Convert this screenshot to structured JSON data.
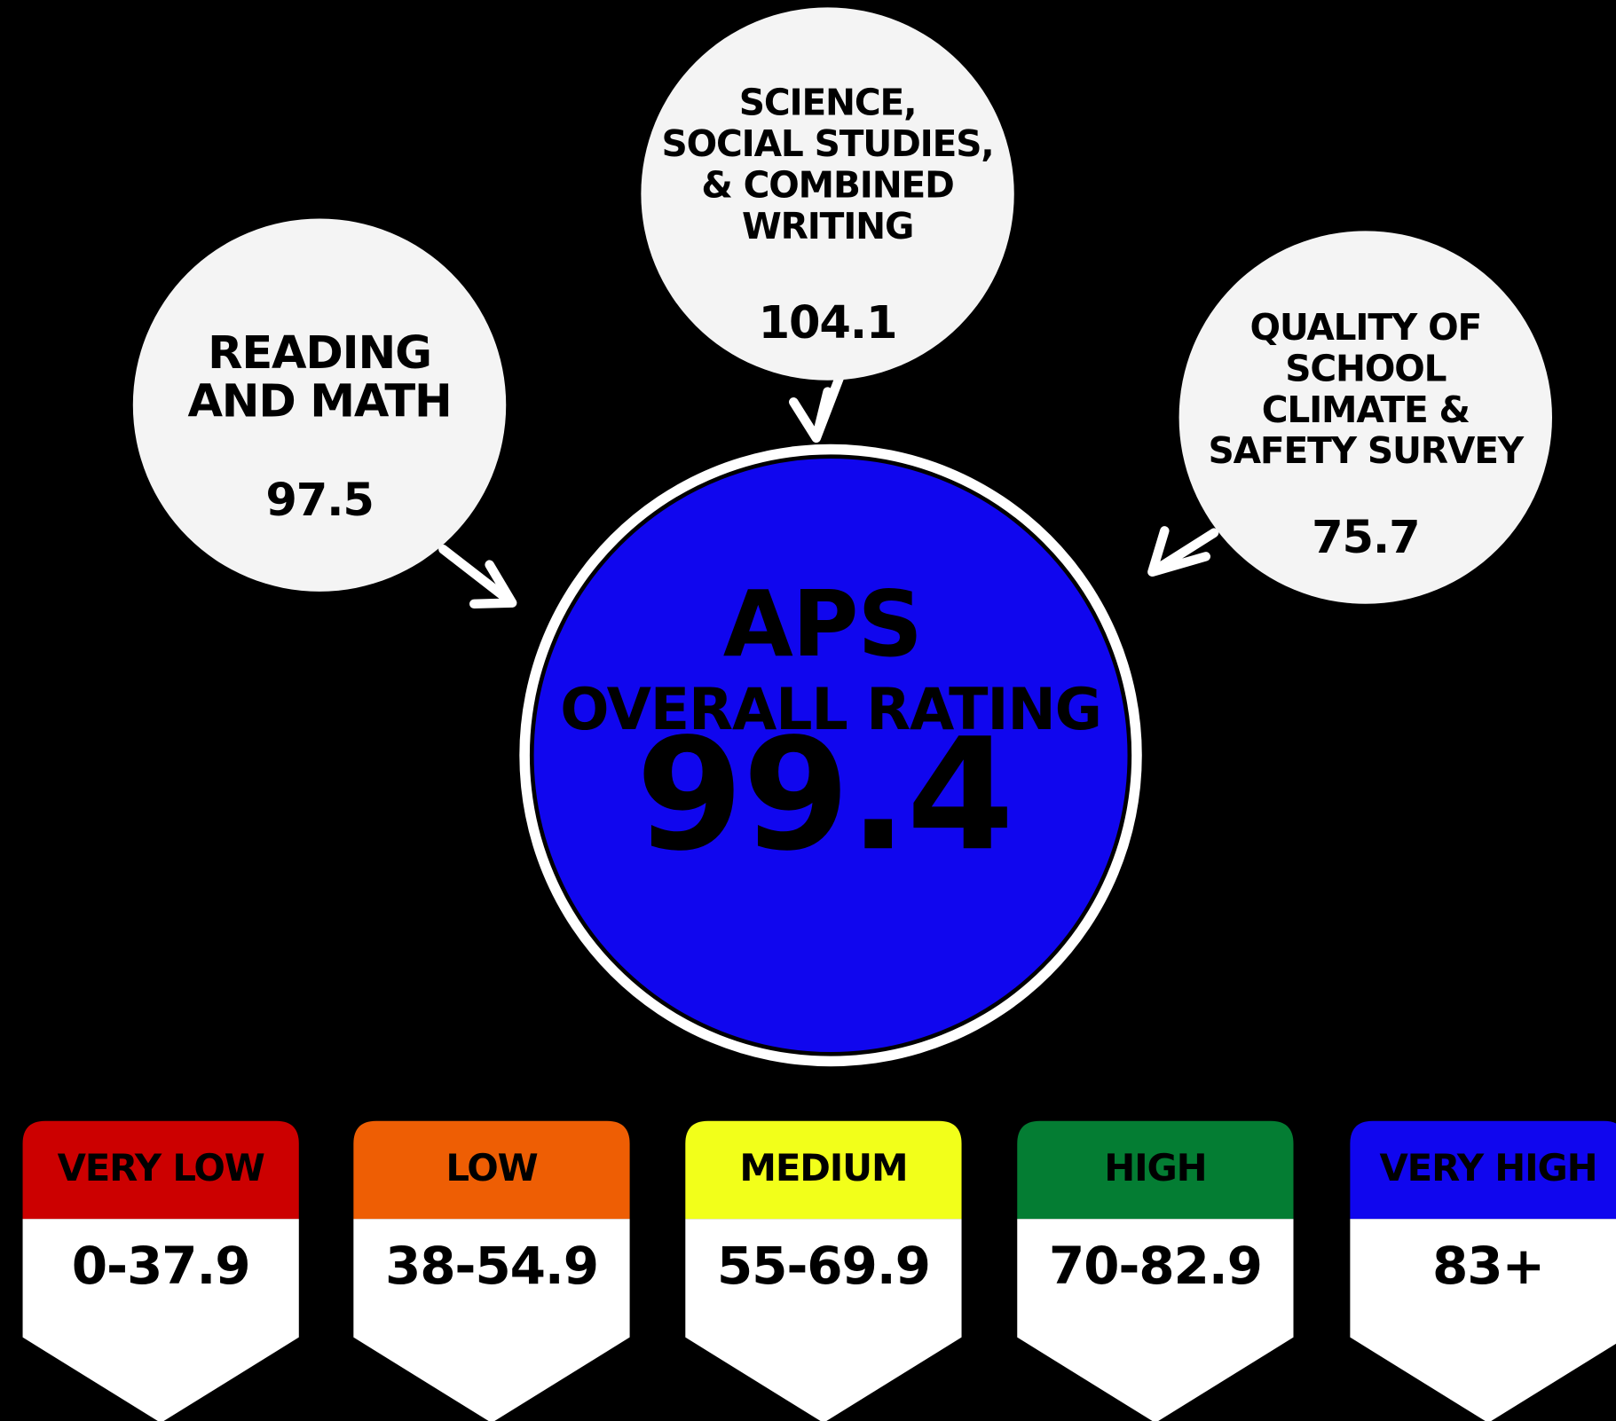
{
  "center": {
    "title": "APS",
    "subtitle": "OVERALL RATING",
    "value": "99.4"
  },
  "nodes": [
    {
      "label": [
        "READING",
        "AND MATH"
      ],
      "value": "97.5"
    },
    {
      "label": [
        "SCIENCE,",
        "SOCIAL STUDIES,",
        "& COMBINED",
        "WRITING"
      ],
      "value": "104.1"
    },
    {
      "label": [
        "QUALITY OF",
        "SCHOOL",
        "CLIMATE &",
        "SAFETY SURVEY"
      ],
      "value": "75.7"
    }
  ],
  "legend": [
    {
      "label": "VERY LOW",
      "range": "0-37.9",
      "color": "#cc0000"
    },
    {
      "label": "LOW",
      "range": "38-54.9",
      "color": "#ee5e04"
    },
    {
      "label": "MEDIUM",
      "range": "55-69.9",
      "color": "#f2ff1a"
    },
    {
      "label": "HIGH",
      "range": "70-82.9",
      "color": "#047d33"
    },
    {
      "label": "VERY HIGH",
      "range": "83+",
      "color": "#1006ee"
    }
  ]
}
